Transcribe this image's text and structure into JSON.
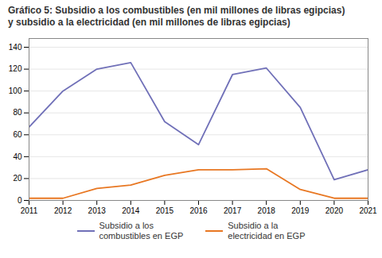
{
  "chart_data": {
    "type": "line",
    "title": "Gráfico 5: Subsidio a los combustibles (en mil millones de libras egipcias)\ny subsidio a la electricidad (en mil millones de libras egipcias)",
    "x": [
      2011,
      2012,
      2013,
      2014,
      2015,
      2016,
      2017,
      2018,
      2019,
      2020,
      2021
    ],
    "series": [
      {
        "name": "Subsidio a los\ncombustibles en EGP",
        "color": "#7070B8",
        "values": [
          67,
          100,
          120,
          126,
          72,
          51,
          115,
          121,
          85,
          19,
          28
        ]
      },
      {
        "name": "Subsidio a la\nelectricidad en EGP",
        "color": "#E87722",
        "values": [
          2,
          2,
          11,
          14,
          23,
          28,
          28,
          29,
          10,
          2,
          2
        ]
      }
    ],
    "xlim": [
      2011,
      2021
    ],
    "xticks": [
      2011,
      2012,
      2013,
      2014,
      2015,
      2016,
      2017,
      2018,
      2019,
      2020,
      2021
    ],
    "ylim": [
      0,
      148
    ],
    "yticks": [
      0,
      20,
      40,
      60,
      80,
      100,
      120,
      140
    ],
    "grid": true,
    "legend": "bottom"
  }
}
